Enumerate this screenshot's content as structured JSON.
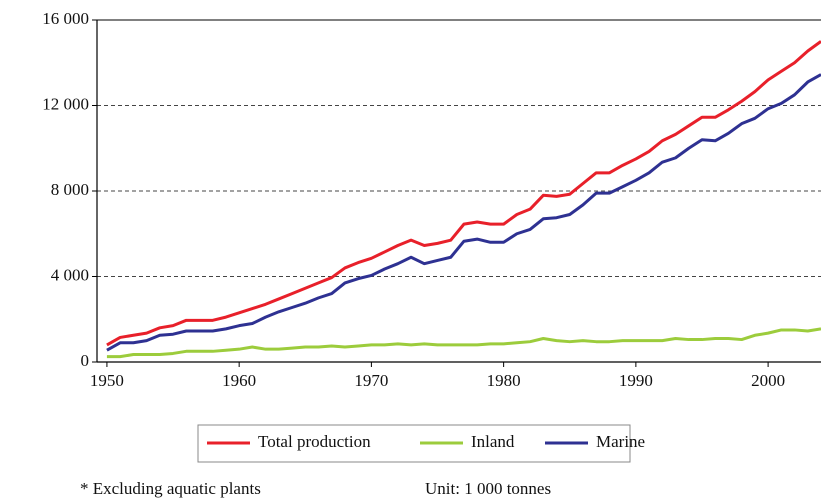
{
  "chart_data": {
    "type": "line",
    "x": [
      1950,
      1951,
      1952,
      1953,
      1954,
      1955,
      1956,
      1957,
      1958,
      1959,
      1960,
      1961,
      1962,
      1963,
      1964,
      1965,
      1966,
      1967,
      1968,
      1969,
      1970,
      1971,
      1972,
      1973,
      1974,
      1975,
      1976,
      1977,
      1978,
      1979,
      1980,
      1981,
      1982,
      1983,
      1984,
      1985,
      1986,
      1987,
      1988,
      1989,
      1990,
      1991,
      1992,
      1993,
      1994,
      1995,
      1996,
      1997,
      1998,
      1999,
      2000,
      2001,
      2002,
      2003,
      2004
    ],
    "series": [
      {
        "name": "Total production",
        "color": "#e8202a",
        "values": [
          800,
          1150,
          1250,
          1350,
          1600,
          1700,
          1950,
          1950,
          1950,
          2100,
          2300,
          2500,
          2700,
          2950,
          3200,
          3450,
          3700,
          3950,
          4400,
          4650,
          4850,
          5150,
          5450,
          5700,
          5450,
          5550,
          5700,
          6450,
          6550,
          6450,
          6450,
          6900,
          7150,
          7800,
          7750,
          7850,
          8350,
          8850,
          8850,
          9200,
          9500,
          9850,
          10350,
          10650,
          11050,
          11450,
          11450,
          11800,
          12200,
          12650,
          13200,
          13600,
          14000,
          14550,
          15000
        ]
      },
      {
        "name": "Inland",
        "color": "#9ccc3c",
        "values": [
          250,
          250,
          350,
          350,
          350,
          400,
          500,
          500,
          500,
          550,
          600,
          700,
          600,
          600,
          650,
          700,
          700,
          750,
          700,
          750,
          800,
          800,
          850,
          800,
          850,
          800,
          800,
          800,
          800,
          850,
          850,
          900,
          950,
          1100,
          1000,
          950,
          1000,
          950,
          950,
          1000,
          1000,
          1000,
          1000,
          1100,
          1050,
          1050,
          1100,
          1100,
          1050,
          1250,
          1350,
          1500,
          1500,
          1450,
          1550
        ]
      },
      {
        "name": "Marine",
        "color": "#2e3192",
        "values": [
          550,
          900,
          900,
          1000,
          1250,
          1300,
          1450,
          1450,
          1450,
          1550,
          1700,
          1800,
          2100,
          2350,
          2550,
          2750,
          3000,
          3200,
          3700,
          3900,
          4050,
          4350,
          4600,
          4900,
          4600,
          4750,
          4900,
          5650,
          5750,
          5600,
          5600,
          6000,
          6200,
          6700,
          6750,
          6900,
          7350,
          7900,
          7900,
          8200,
          8500,
          8850,
          9350,
          9550,
          10000,
          10400,
          10350,
          10700,
          11150,
          11400,
          11850,
          12100,
          12500,
          13100,
          13450
        ]
      }
    ],
    "xlim": [
      1949.25,
      2004
    ],
    "xticks": [
      1950,
      1960,
      1970,
      1980,
      1990,
      2000
    ],
    "ylim": [
      0,
      16000
    ],
    "yticks": [
      0,
      {
        "value": 4000,
        "label": "4 000"
      },
      {
        "value": 8000,
        "label": "8 000"
      },
      {
        "value": 12000,
        "label": "12 000"
      },
      {
        "value": 16000,
        "label": "16 000"
      }
    ],
    "grid": true,
    "legend": "bottom",
    "annotations": [
      "* Excluding aquatic plants",
      "Unit: 1 000 tonnes"
    ]
  }
}
